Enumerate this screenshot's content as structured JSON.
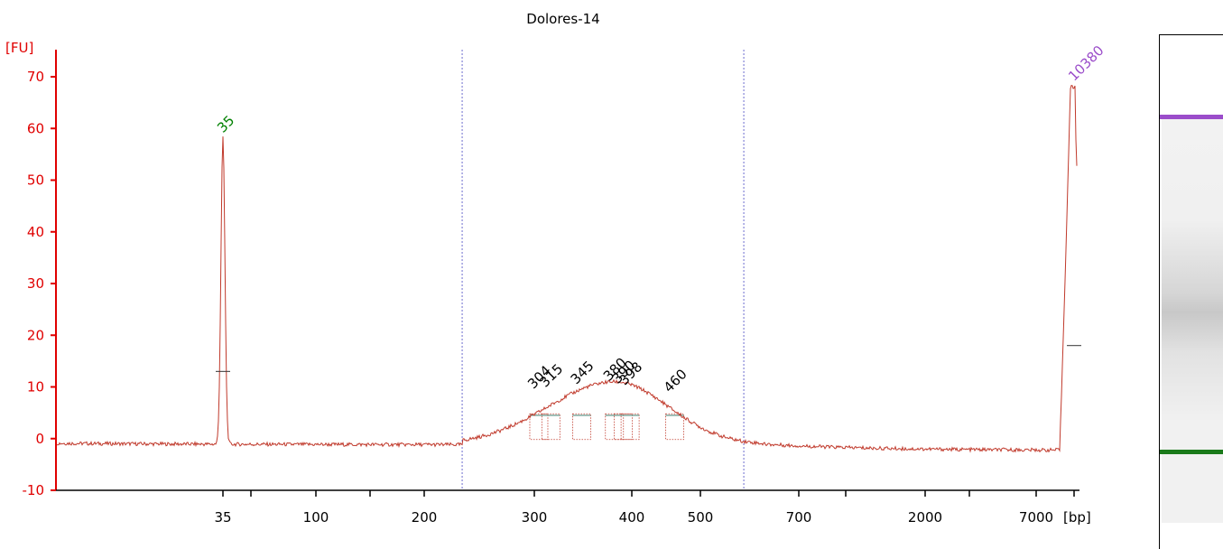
{
  "chart_data": {
    "type": "line",
    "title": "Dolores-14",
    "ylabel": "[FU]",
    "xlabel": "[bp]",
    "ylim": [
      -10,
      73
    ],
    "yticks": [
      -10,
      0,
      10,
      20,
      30,
      40,
      50,
      60,
      70
    ],
    "xticks": [
      "35",
      "100",
      "200",
      "300",
      "400",
      "500",
      "700",
      "2000",
      "7000"
    ],
    "x_scale": "ladder-calibrated",
    "grid": false,
    "series": [
      {
        "color": "#c0392b",
        "markers": [
          {
            "label": "35",
            "bp": 35,
            "fu": 58
          },
          {
            "label": "10380",
            "bp": 10380,
            "fu": 68
          }
        ],
        "peaks": [
          {
            "label": "304",
            "bp": 304,
            "fu": 9.5
          },
          {
            "label": "315",
            "bp": 315,
            "fu": 9.8
          },
          {
            "label": "345",
            "bp": 345,
            "fu": 10.4
          },
          {
            "label": "380",
            "bp": 380,
            "fu": 11.0
          },
          {
            "label": "390",
            "bp": 390,
            "fu": 10.5
          },
          {
            "label": "398",
            "bp": 398,
            "fu": 10.2
          },
          {
            "label": "460",
            "bp": 460,
            "fu": 8.8
          }
        ],
        "baseline_fu": -1.2,
        "smear_range_bp": [
          230,
          580
        ]
      }
    ],
    "region_bounds_bp": [
      230,
      580
    ]
  },
  "colors": {
    "axis": "#e00000",
    "trace": "#c0392b",
    "lower_marker": "#008000",
    "upper_marker": "#9b4dca",
    "region_line": "#6d6dcf"
  },
  "gel": {
    "upper_band_color": "#9b4dca",
    "lower_band_color": "#1a7a1a"
  }
}
